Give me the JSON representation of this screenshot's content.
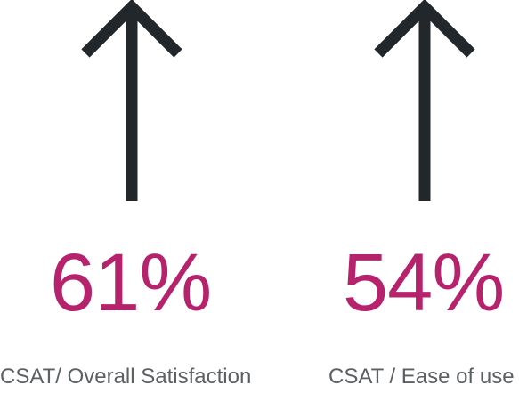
{
  "colors": {
    "arrow": "#22272b",
    "value": "#b6226b",
    "label": "#5b6063"
  },
  "stats": [
    {
      "icon": "arrow-up-icon",
      "value": "61%",
      "label": "CSAT/ Overall Satisfaction"
    },
    {
      "icon": "arrow-up-icon",
      "value": "54%",
      "label": "CSAT / Ease of use"
    }
  ]
}
